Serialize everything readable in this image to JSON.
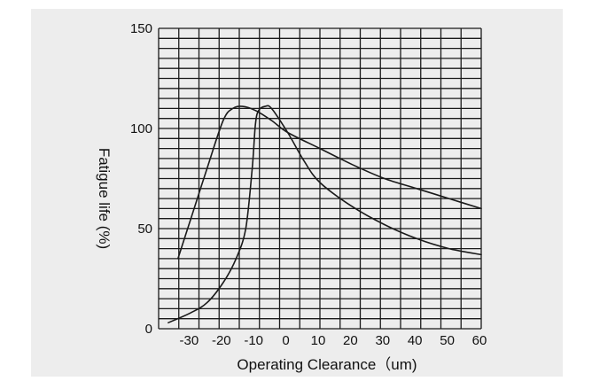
{
  "chart_data": {
    "type": "line",
    "title": "",
    "xlabel": "Operating Clearance（um)",
    "ylabel": "Fatigue life (%)",
    "xlim": [
      -40,
      60
    ],
    "ylim": [
      0,
      150
    ],
    "grid": true,
    "x_ticks": [
      "-30",
      "-20",
      "-10",
      "0",
      "10",
      "20",
      "30",
      "40",
      "50",
      "60"
    ],
    "y_ticks": [
      "0",
      "50",
      "100",
      "150"
    ],
    "series": [
      {
        "points": [
          [
            -34,
            35
          ],
          [
            -30,
            55
          ],
          [
            -25,
            80
          ],
          [
            -20,
            104
          ],
          [
            -17,
            110
          ],
          [
            -14,
            111
          ],
          [
            -10,
            109
          ],
          [
            -5,
            104
          ],
          [
            0,
            98
          ],
          [
            10,
            90
          ],
          [
            20,
            82
          ],
          [
            30,
            75
          ],
          [
            40,
            70
          ],
          [
            50,
            65
          ],
          [
            60,
            60
          ]
        ]
      },
      {
        "points": [
          [
            -37,
            3
          ],
          [
            -30,
            8
          ],
          [
            -25,
            13
          ],
          [
            -20,
            23
          ],
          [
            -16,
            35
          ],
          [
            -13,
            50
          ],
          [
            -11,
            80
          ],
          [
            -10,
            102
          ],
          [
            -9,
            109
          ],
          [
            -7,
            111
          ],
          [
            -5,
            110
          ],
          [
            0,
            98
          ],
          [
            5,
            84
          ],
          [
            10,
            73
          ],
          [
            20,
            61
          ],
          [
            30,
            52
          ],
          [
            40,
            45
          ],
          [
            50,
            40
          ],
          [
            60,
            37
          ]
        ]
      }
    ]
  }
}
